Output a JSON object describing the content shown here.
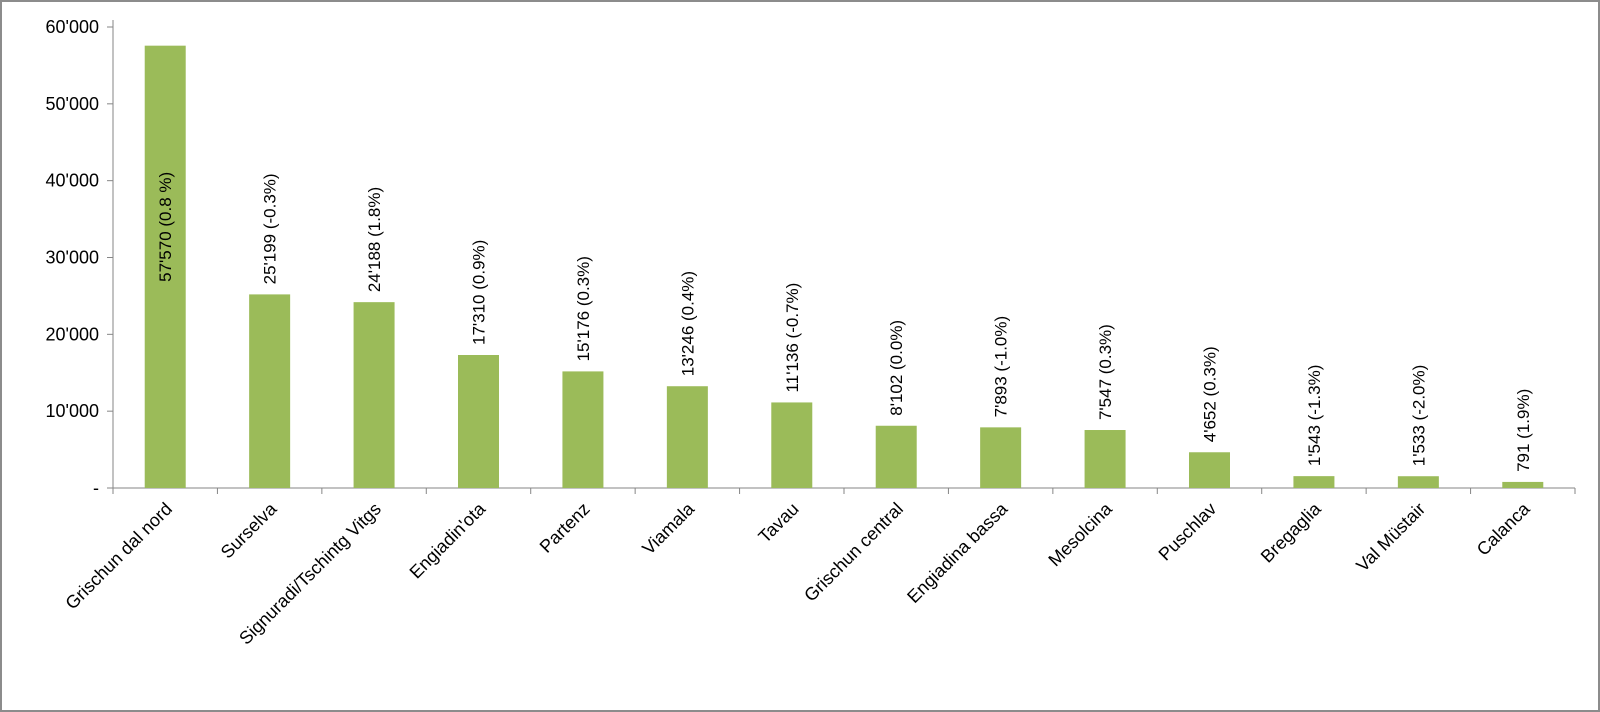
{
  "chart_data": {
    "type": "bar",
    "title": "",
    "xlabel": "",
    "ylabel": "",
    "ylim": [
      0,
      60000
    ],
    "yticks": [
      0,
      10000,
      20000,
      30000,
      40000,
      50000,
      60000
    ],
    "ytick_labels": [
      "-",
      "10'000",
      "20'000",
      "30'000",
      "40'000",
      "50'000",
      "60'000"
    ],
    "grid": false,
    "legend": "none",
    "bar_color": "#9bbb59",
    "categories": [
      "Grischun dal nord",
      "Surselva",
      "Signuradi/Tschintg Vitgs",
      "Engiadin'ota",
      "Partenz",
      "Viamala",
      "Tavau",
      "Grischun central",
      "Engiadina bassa",
      "Mesolcina",
      "Puschlav",
      "Bregaglia",
      "Val Müstair",
      "Calanca"
    ],
    "values": [
      57570,
      25199,
      24188,
      17310,
      15176,
      13246,
      11136,
      8102,
      7893,
      7547,
      4652,
      1543,
      1533,
      791
    ],
    "data_labels": [
      "57'570 (0.8 %)",
      "25'199 (-0.3%)",
      "24'188 (1.8%)",
      "17'310 (0.9%)",
      "15'176 (0.3%)",
      "13'246 (0.4%)",
      "11'136 (-0.7%)",
      "8'102 (0.0%)",
      "7'893 (-1.0%)",
      "7'547 (0.3%)",
      "4'652 (0.3%)",
      "1'543 (-1.3%)",
      "1'533 (-2.0%)",
      "791 (1.9%)"
    ]
  }
}
